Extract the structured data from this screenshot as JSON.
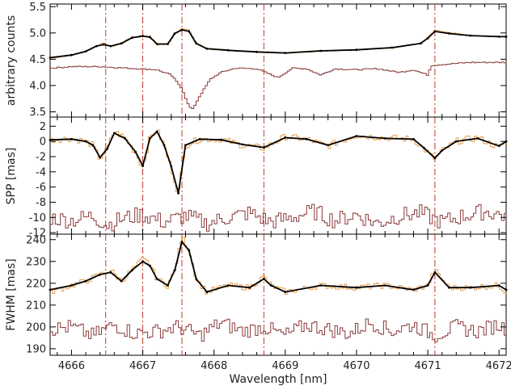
{
  "chart_data": [
    {
      "type": "line",
      "ylabel": "arbitrary counts",
      "ylim": [
        3.4,
        5.55
      ],
      "yticks": [
        "3.5",
        "4.0",
        "4.5",
        "5.0",
        "5.5"
      ],
      "series": [
        {
          "role": "data",
          "style": "orange steps",
          "color": "#e8a050",
          "x": [
            4665.7,
            4666.0,
            4666.2,
            4666.35,
            4666.45,
            4666.55,
            4666.7,
            4666.85,
            4667.0,
            4667.1,
            4667.2,
            4667.35,
            4667.45,
            4667.55,
            4667.65,
            4667.75,
            4667.9,
            4668.2,
            4668.6,
            4669.0,
            4669.5,
            4670.0,
            4670.5,
            4670.9,
            4671.0,
            4671.1,
            4671.3,
            4671.6,
            4672.0,
            4672.1
          ],
          "y": [
            4.52,
            4.58,
            4.65,
            4.76,
            4.8,
            4.74,
            4.8,
            4.92,
            4.95,
            4.93,
            4.78,
            4.78,
            5.0,
            5.08,
            5.05,
            4.8,
            4.7,
            4.67,
            4.64,
            4.62,
            4.66,
            4.68,
            4.72,
            4.8,
            4.9,
            5.05,
            5.0,
            4.95,
            4.93,
            4.93
          ]
        },
        {
          "role": "fit",
          "style": "black line",
          "color": "#000000",
          "x": [
            4665.7,
            4666.0,
            4666.2,
            4666.35,
            4666.45,
            4666.55,
            4666.7,
            4666.85,
            4667.0,
            4667.1,
            4667.2,
            4667.35,
            4667.45,
            4667.55,
            4667.65,
            4667.75,
            4667.9,
            4668.2,
            4668.6,
            4669.0,
            4669.5,
            4670.0,
            4670.5,
            4670.9,
            4671.0,
            4671.1,
            4671.3,
            4671.6,
            4672.0,
            4672.1
          ],
          "y": [
            4.53,
            4.58,
            4.65,
            4.75,
            4.78,
            4.75,
            4.8,
            4.91,
            4.94,
            4.92,
            4.79,
            4.79,
            4.99,
            5.06,
            5.03,
            4.8,
            4.7,
            4.67,
            4.64,
            4.62,
            4.66,
            4.68,
            4.72,
            4.8,
            4.9,
            5.03,
            4.99,
            4.95,
            4.93,
            4.93
          ]
        },
        {
          "role": "reference",
          "style": "dark-red steps",
          "color": "#8b3a3a",
          "x": [
            4665.7,
            4666.0,
            4666.4,
            4666.8,
            4667.2,
            4667.4,
            4667.55,
            4667.65,
            4667.7,
            4667.8,
            4667.95,
            4668.1,
            4668.3,
            4668.6,
            4668.9,
            4669.1,
            4669.3,
            4669.5,
            4669.7,
            4670.0,
            4670.3,
            4670.6,
            4670.8,
            4671.0,
            4671.05,
            4671.2,
            4671.6,
            4672.1
          ],
          "y": [
            4.33,
            4.36,
            4.36,
            4.33,
            4.3,
            4.2,
            3.95,
            3.6,
            3.55,
            3.8,
            4.12,
            4.25,
            4.33,
            4.32,
            4.15,
            4.33,
            4.32,
            4.2,
            4.32,
            4.3,
            4.32,
            4.25,
            4.3,
            4.2,
            4.38,
            4.4,
            4.44,
            4.44
          ]
        }
      ]
    },
    {
      "type": "line",
      "ylabel": "SPP [mas]",
      "ylim": [
        -12.2,
        3.2
      ],
      "yticks": [
        "-12",
        "-10",
        "-8",
        "-6",
        "-4",
        "-2",
        "0",
        "2"
      ],
      "series": [
        {
          "role": "data",
          "style": "orange steps",
          "color": "#e8a050",
          "x": [
            4665.7,
            4666.0,
            4666.2,
            4666.3,
            4666.4,
            4666.5,
            4666.6,
            4666.75,
            4666.9,
            4667.0,
            4667.1,
            4667.2,
            4667.3,
            4667.4,
            4667.5,
            4667.6,
            4667.8,
            4668.1,
            4668.4,
            4668.7,
            4669.0,
            4669.3,
            4669.6,
            4670.0,
            4670.4,
            4670.8,
            4670.95,
            4671.1,
            4671.2,
            4671.4,
            4671.7,
            4672.0,
            4672.1
          ],
          "y": [
            0.2,
            0.4,
            0.0,
            -0.5,
            -2.3,
            -1.0,
            1.3,
            0.5,
            -1.5,
            -3.4,
            0.5,
            1.5,
            -0.5,
            -3.5,
            -7.0,
            -0.5,
            0.3,
            0.3,
            -0.5,
            -0.9,
            0.6,
            0.3,
            -0.6,
            0.8,
            0.5,
            0.3,
            -1.0,
            -2.3,
            -1.3,
            0.0,
            0.5,
            -0.8,
            0.0
          ]
        },
        {
          "role": "fit",
          "style": "black line",
          "color": "#000000",
          "x": [
            4665.7,
            4666.0,
            4666.2,
            4666.3,
            4666.4,
            4666.5,
            4666.6,
            4666.75,
            4666.9,
            4667.0,
            4667.1,
            4667.2,
            4667.3,
            4667.4,
            4667.5,
            4667.6,
            4667.8,
            4668.1,
            4668.4,
            4668.7,
            4669.0,
            4669.3,
            4669.6,
            4670.0,
            4670.4,
            4670.8,
            4670.95,
            4671.1,
            4671.2,
            4671.4,
            4671.7,
            4672.0,
            4672.1
          ],
          "y": [
            0.2,
            0.3,
            0.0,
            -0.5,
            -2.1,
            -1.0,
            1.1,
            0.4,
            -1.4,
            -3.2,
            0.4,
            1.3,
            -0.5,
            -3.3,
            -6.8,
            -0.5,
            0.3,
            0.2,
            -0.4,
            -0.8,
            0.5,
            0.3,
            -0.5,
            0.7,
            0.4,
            0.3,
            -0.9,
            -2.2,
            -1.2,
            0.0,
            0.4,
            -0.6,
            0.0
          ]
        },
        {
          "role": "residual",
          "style": "dark-red steps around -10",
          "color": "#8b3a3a",
          "x": [
            4665.7,
            4666.0,
            4666.3,
            4666.5,
            4666.7,
            4667.0,
            4667.3,
            4667.6,
            4667.9,
            4668.2,
            4668.5,
            4668.8,
            4669.1,
            4669.4,
            4669.7,
            4670.0,
            4670.3,
            4670.6,
            4670.9,
            4671.2,
            4671.5,
            4671.8,
            4672.1
          ],
          "y": [
            -10.0,
            -10.4,
            -9.8,
            -11.0,
            -10.2,
            -9.6,
            -10.6,
            -9.8,
            -10.8,
            -10.0,
            -9.4,
            -10.6,
            -10.0,
            -9.2,
            -10.4,
            -9.6,
            -10.8,
            -9.8,
            -9.4,
            -10.6,
            -9.8,
            -9.2,
            -9.8
          ]
        }
      ]
    },
    {
      "type": "line",
      "ylabel": "FWHM [mas]",
      "ylim": [
        187.0,
        242.5
      ],
      "yticks": [
        "190",
        "200",
        "210",
        "220",
        "230",
        "240"
      ],
      "xlabel": "Wavelength [nm]",
      "xlim": [
        4665.7,
        4672.1
      ],
      "xticks": [
        "4666",
        "4667",
        "4668",
        "4669",
        "4670",
        "4671",
        "4672"
      ],
      "series": [
        {
          "role": "data",
          "style": "orange steps",
          "color": "#e8a050",
          "x": [
            4665.7,
            4666.0,
            4666.2,
            4666.4,
            4666.55,
            4666.7,
            4666.85,
            4667.0,
            4667.1,
            4667.2,
            4667.35,
            4667.45,
            4667.55,
            4667.65,
            4667.75,
            4667.9,
            4668.2,
            4668.5,
            4668.7,
            4668.8,
            4669.0,
            4669.5,
            4670.0,
            4670.4,
            4670.8,
            4671.0,
            4671.1,
            4671.3,
            4671.6,
            4672.0,
            4672.1
          ],
          "y": [
            216,
            219,
            221,
            224,
            226,
            221,
            226,
            231,
            229,
            222,
            219,
            226,
            241,
            236,
            222,
            216,
            219,
            218,
            223,
            219,
            216,
            219,
            218,
            219,
            217,
            219,
            226,
            218,
            218,
            219,
            216
          ]
        },
        {
          "role": "fit",
          "style": "black line",
          "color": "#000000",
          "x": [
            4665.7,
            4666.0,
            4666.2,
            4666.4,
            4666.55,
            4666.7,
            4666.85,
            4667.0,
            4667.1,
            4667.2,
            4667.35,
            4667.45,
            4667.55,
            4667.65,
            4667.75,
            4667.9,
            4668.2,
            4668.5,
            4668.7,
            4668.8,
            4669.0,
            4669.5,
            4670.0,
            4670.4,
            4670.8,
            4671.0,
            4671.1,
            4671.3,
            4671.6,
            4672.0,
            4672.1
          ],
          "y": [
            217,
            219,
            221,
            224,
            225,
            221,
            226,
            230,
            228,
            222,
            219,
            226,
            239,
            235,
            222,
            216,
            219,
            218,
            222,
            219,
            216,
            219,
            218,
            219,
            217,
            219,
            225,
            218,
            218,
            219,
            217
          ]
        },
        {
          "role": "residual",
          "style": "dark-red steps around 200",
          "color": "#8b3a3a",
          "x": [
            4665.7,
            4666.0,
            4666.3,
            4666.6,
            4666.9,
            4667.2,
            4667.5,
            4667.8,
            4668.1,
            4668.4,
            4668.7,
            4669.0,
            4669.3,
            4669.6,
            4669.9,
            4670.2,
            4670.5,
            4670.8,
            4671.1,
            4671.4,
            4671.7,
            4672.0,
            4672.1
          ],
          "y": [
            199,
            200,
            196,
            201,
            197,
            198,
            200,
            196,
            202,
            198,
            200,
            196,
            201,
            199,
            197,
            202,
            198,
            201,
            196,
            200,
            198,
            201,
            199
          ]
        }
      ]
    }
  ],
  "vlines": [
    4666.48,
    4667.0,
    4667.55,
    4668.7,
    4671.1
  ]
}
